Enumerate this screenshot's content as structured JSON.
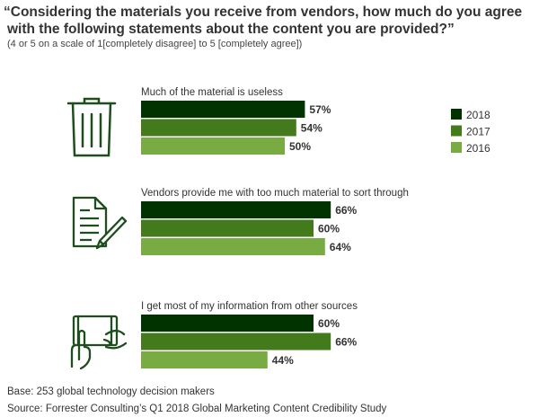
{
  "title_line1": "“Considering the materials you receive from vendors, how much do you agree",
  "title_line2": "with the following statements about the content you are provided?”",
  "subtitle": "(4 or 5 on a scale of 1[completely disagree] to 5 [completely agree])",
  "footer": {
    "base": "Base: 253 global technology decision makers",
    "source": "Source: Forrester Consulting’s Q1 2018 Global Marketing Content Credibility Study"
  },
  "icons": [
    "trash-can-icon",
    "document-pencil-icon",
    "tablet-hands-icon"
  ],
  "chart_data": {
    "type": "bar",
    "orientation": "horizontal",
    "unit": "%",
    "categories": [
      "Much of the material is useless",
      "Vendors provide me with too much material to sort through",
      "I get most of my information from other sources"
    ],
    "series": [
      {
        "name": "2018",
        "color": "#003300",
        "values": [
          57,
          66,
          60
        ]
      },
      {
        "name": "2017",
        "color": "#437a1c",
        "values": [
          54,
          60,
          66
        ]
      },
      {
        "name": "2016",
        "color": "#78ab41",
        "values": [
          50,
          64,
          44
        ]
      }
    ],
    "xlim": [
      0,
      100
    ],
    "legend": "right",
    "grid": false
  }
}
